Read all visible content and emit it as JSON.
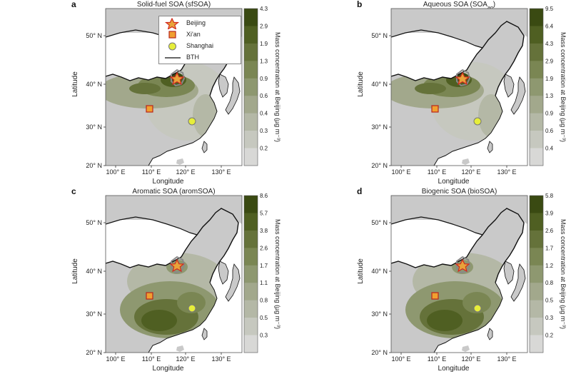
{
  "figure": {
    "panels": [
      {
        "letter": "a",
        "title": "Solid-fuel SOA (sfSOA)",
        "title_sub": "",
        "title_end": "",
        "colorbar_ticks": [
          "4.3",
          "2.9",
          "1.9",
          "1.3",
          "0.9",
          "0.6",
          "0.4",
          "0.3",
          "0.2"
        ],
        "colorbar_label": "Mass concentration at Beijing (µg m⁻³)",
        "xlabel": "Longitude",
        "ylabel": "Latitude",
        "x_ticks": [
          "100° E",
          "110° E",
          "120° E",
          "130° E"
        ],
        "y_ticks": [
          "50° N",
          "40° N",
          "30° N",
          "20° N"
        ],
        "pattern": "north"
      },
      {
        "letter": "b",
        "title": "Aqueous SOA (SOA",
        "title_sub": "aq",
        "title_end": ")",
        "colorbar_ticks": [
          "9.5",
          "6.4",
          "4.3",
          "2.9",
          "1.9",
          "1.3",
          "0.9",
          "0.6",
          "0.4"
        ],
        "colorbar_label": "Mass concentration at Beijing (µg m⁻³)",
        "xlabel": "Longitude",
        "ylabel": "Latitude",
        "x_ticks": [
          "100° E",
          "110° E",
          "120° E",
          "130° E"
        ],
        "y_ticks": [
          "50° N",
          "40° N",
          "30° N",
          "20° N"
        ],
        "pattern": "north"
      },
      {
        "letter": "c",
        "title": "Aromatic SOA (aromSOA)",
        "title_sub": "",
        "title_end": "",
        "colorbar_ticks": [
          "8.6",
          "5.7",
          "3.8",
          "2.6",
          "1.7",
          "1.1",
          "0.8",
          "0.5",
          "0.3"
        ],
        "colorbar_label": "Mass concentration at Beijing (µg m⁻³)",
        "xlabel": "Longitude",
        "ylabel": "Latitude",
        "x_ticks": [
          "100° E",
          "110° E",
          "120° E",
          "130° E"
        ],
        "y_ticks": [
          "50° N",
          "40° N",
          "30° N",
          "20° N"
        ],
        "pattern": "south"
      },
      {
        "letter": "d",
        "title": "Biogenic SOA (bioSOA)",
        "title_sub": "",
        "title_end": "",
        "colorbar_ticks": [
          "5.8",
          "3.9",
          "2.6",
          "1.7",
          "1.2",
          "0.8",
          "0.5",
          "0.3",
          "0.2"
        ],
        "colorbar_label": "Mass concentration at Beijing (µg m⁻³)",
        "xlabel": "Longitude",
        "ylabel": "Latitude",
        "x_ticks": [
          "100° E",
          "110° E",
          "120° E",
          "130° E"
        ],
        "y_ticks": [
          "50° N",
          "40° N",
          "30° N",
          "20° N"
        ],
        "pattern": "south"
      }
    ],
    "legend": {
      "items": [
        {
          "label": "Beijing",
          "symbol": "star-icon"
        },
        {
          "label": "Xi'an",
          "symbol": "square-icon"
        },
        {
          "label": "Shanghai",
          "symbol": "circle-icon"
        },
        {
          "label": "BTH",
          "symbol": "line-icon"
        }
      ]
    },
    "colors": {
      "colorbar": [
        "#3a4a12",
        "#4f5f22",
        "#65723a",
        "#7a8653",
        "#8e9870",
        "#a2a88c",
        "#b4b8a6",
        "#c6c8bf",
        "#d8d8d6"
      ],
      "sea": "#ffffff",
      "land_low": "#c9c9c9",
      "beijing_star": "#e8a33a",
      "star_outline": "#d22a1e",
      "xian_square": "#f0a030",
      "shanghai_circle": "#e6ee3a"
    }
  }
}
